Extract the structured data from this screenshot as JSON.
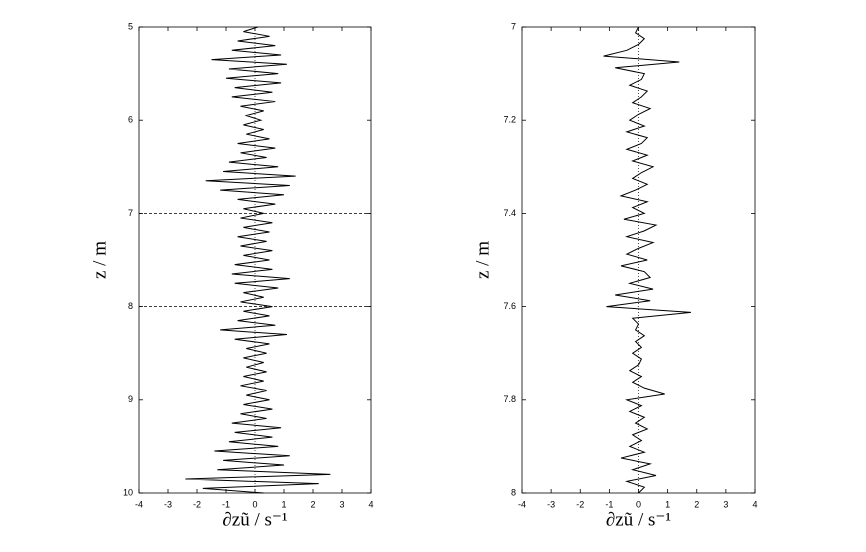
{
  "chart_data": [
    {
      "type": "line",
      "orientation": "vertical",
      "y_inverted": true,
      "color": "#000000",
      "xlabel": "∂zũ / s⁻¹",
      "ylabel": "z / m",
      "xlim": [
        -4,
        4
      ],
      "xticks": [
        -4,
        -3,
        -2,
        -1,
        0,
        1,
        2,
        3,
        4
      ],
      "ylim": [
        5,
        10
      ],
      "yticks": [
        5,
        6,
        7,
        8,
        9,
        10
      ],
      "zero_line": 0,
      "dashed_lines": [
        7,
        8
      ],
      "depth": [
        5,
        5.05,
        5.1,
        5.15,
        5.2,
        5.25,
        5.3,
        5.35,
        5.4,
        5.45,
        5.5,
        5.55,
        5.6,
        5.65,
        5.7,
        5.75,
        5.8,
        5.85,
        5.9,
        5.95,
        6,
        6.05,
        6.1,
        6.15,
        6.2,
        6.25,
        6.3,
        6.35,
        6.4,
        6.45,
        6.5,
        6.55,
        6.6,
        6.65,
        6.7,
        6.75,
        6.8,
        6.85,
        6.9,
        6.95,
        7,
        7.05,
        7.1,
        7.15,
        7.2,
        7.25,
        7.3,
        7.35,
        7.4,
        7.45,
        7.5,
        7.55,
        7.6,
        7.65,
        7.7,
        7.75,
        7.8,
        7.85,
        7.9,
        7.95,
        8,
        8.05,
        8.1,
        8.15,
        8.2,
        8.25,
        8.3,
        8.35,
        8.4,
        8.45,
        8.5,
        8.55,
        8.6,
        8.65,
        8.7,
        8.75,
        8.8,
        8.85,
        8.9,
        8.95,
        9,
        9.05,
        9.1,
        9.15,
        9.2,
        9.25,
        9.3,
        9.35,
        9.4,
        9.45,
        9.5,
        9.55,
        9.6,
        9.65,
        9.7,
        9.75,
        9.8,
        9.85,
        9.9,
        9.95,
        10
      ],
      "values": [
        0.1,
        -0.4,
        0.5,
        -0.6,
        0.7,
        -0.8,
        0.9,
        -1.5,
        1.1,
        -0.9,
        0.8,
        -1.0,
        0.9,
        -0.7,
        0.6,
        -0.8,
        0.7,
        -0.5,
        0.3,
        -0.3,
        0.2,
        -0.4,
        0.3,
        -0.3,
        0.5,
        -0.6,
        0.7,
        -0.5,
        0.4,
        -0.9,
        0.8,
        -1.1,
        1.4,
        -1.7,
        1.2,
        -1.2,
        1.0,
        -0.6,
        0.7,
        -0.4,
        0.3,
        -0.5,
        0.6,
        -0.4,
        0.5,
        -0.6,
        0.4,
        -0.5,
        0.6,
        -0.4,
        0.5,
        -0.7,
        0.6,
        -0.8,
        1.2,
        -0.7,
        0.8,
        -0.4,
        0.3,
        -0.5,
        0.6,
        -0.4,
        0.5,
        -0.6,
        0.7,
        -1.2,
        1.1,
        -0.7,
        0.5,
        -0.3,
        0.4,
        -0.4,
        0.3,
        -0.3,
        0.4,
        -0.4,
        0.3,
        -0.5,
        0.4,
        -0.3,
        0.5,
        -0.4,
        0.6,
        -0.5,
        0.4,
        -0.8,
        0.9,
        -0.7,
        0.6,
        -0.9,
        0.8,
        -1.4,
        1.2,
        -1.1,
        1.0,
        -1.3,
        2.6,
        -2.4,
        2.2,
        -1.8,
        0.3
      ]
    },
    {
      "type": "line",
      "orientation": "vertical",
      "y_inverted": true,
      "color": "#000000",
      "xlabel": "∂zũ / s⁻¹",
      "ylabel": "z / m",
      "xlim": [
        -4,
        4
      ],
      "xticks": [
        -4,
        -3,
        -2,
        -1,
        0,
        1,
        2,
        3,
        4
      ],
      "ylim": [
        7,
        8
      ],
      "yticks": [
        7,
        7.2,
        7.4,
        7.6,
        7.8,
        8
      ],
      "zero_line": 0,
      "depth": [
        7,
        7.0125,
        7.025,
        7.0375,
        7.05,
        7.0625,
        7.075,
        7.0875,
        7.1,
        7.1125,
        7.125,
        7.1375,
        7.15,
        7.1625,
        7.175,
        7.1875,
        7.2,
        7.2125,
        7.225,
        7.2375,
        7.25,
        7.2625,
        7.275,
        7.2875,
        7.3,
        7.3125,
        7.325,
        7.3375,
        7.35,
        7.3625,
        7.375,
        7.3875,
        7.4,
        7.4125,
        7.425,
        7.4375,
        7.45,
        7.4625,
        7.475,
        7.4875,
        7.5,
        7.5125,
        7.525,
        7.5375,
        7.55,
        7.5625,
        7.575,
        7.5875,
        7.6,
        7.6125,
        7.625,
        7.6375,
        7.65,
        7.6625,
        7.675,
        7.6875,
        7.7,
        7.7125,
        7.725,
        7.7375,
        7.75,
        7.7625,
        7.775,
        7.7875,
        7.8,
        7.8125,
        7.825,
        7.8375,
        7.85,
        7.8625,
        7.875,
        7.8875,
        7.9,
        7.9125,
        7.925,
        7.9375,
        7.95,
        7.9625,
        7.975,
        7.9875,
        8
      ],
      "values": [
        0,
        -0.1,
        0.2,
        0,
        -0.4,
        -1.2,
        1.4,
        -0.8,
        0.2,
        0.1,
        -0.3,
        0.3,
        0.1,
        -0.2,
        0.4,
        0,
        -0.3,
        0.2,
        -0.4,
        0.3,
        0.1,
        -0.4,
        0.3,
        -0.2,
        0.5,
        0.1,
        -0.2,
        0.3,
        -0.1,
        -0.6,
        0.3,
        -0.2,
        0.2,
        -0.5,
        0.6,
        0.2,
        -0.4,
        0.5,
        0,
        -0.4,
        0.3,
        -0.6,
        0.2,
        0.4,
        -0.3,
        0.5,
        -0.8,
        0.4,
        -1.1,
        1.8,
        -0.2,
        0,
        -0.1,
        0.2,
        -0.1,
        0.1,
        -0.2,
        0.1,
        0,
        -0.3,
        0.1,
        -0.2,
        0.2,
        0.9,
        -0.4,
        0.1,
        -0.3,
        0.2,
        -0.1,
        0.3,
        -0.2,
        0.1,
        -0.3,
        0.2,
        -0.6,
        0.4,
        -0.2,
        0.6,
        -0.4,
        0.2,
        0
      ]
    }
  ]
}
